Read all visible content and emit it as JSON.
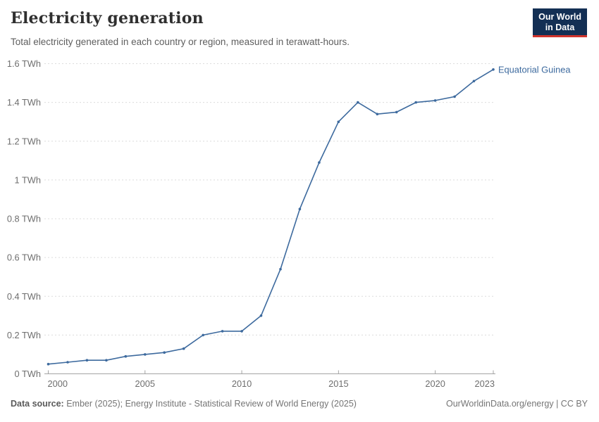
{
  "header": {
    "title": "Electricity generation",
    "subtitle": "Total electricity generated in each country or region, measured in terawatt-hours.",
    "logo": {
      "line1": "Our World",
      "line2": "in Data"
    }
  },
  "chart_data": {
    "type": "line",
    "title": "Electricity generation",
    "subtitle": "Total electricity generated in each country or region, measured in terawatt-hours.",
    "x": [
      2000,
      2001,
      2002,
      2003,
      2004,
      2005,
      2006,
      2007,
      2008,
      2009,
      2010,
      2011,
      2012,
      2013,
      2014,
      2015,
      2016,
      2017,
      2018,
      2019,
      2020,
      2021,
      2022,
      2023
    ],
    "series": [
      {
        "name": "Equatorial Guinea",
        "color": "#3d6a9e",
        "values": [
          0.05,
          0.06,
          0.07,
          0.07,
          0.09,
          0.1,
          0.11,
          0.13,
          0.2,
          0.22,
          0.22,
          0.3,
          0.54,
          0.85,
          1.09,
          1.3,
          1.4,
          1.34,
          1.35,
          1.4,
          1.41,
          1.43,
          1.51,
          1.57
        ]
      }
    ],
    "xlabel": "",
    "ylabel": "",
    "unit": "TWh",
    "xlim": [
      2000,
      2023
    ],
    "ylim": [
      0,
      1.6
    ],
    "x_ticks": [
      2000,
      2005,
      2010,
      2015,
      2020,
      2023
    ],
    "y_ticks": [
      {
        "v": 0,
        "label": "0 TWh"
      },
      {
        "v": 0.2,
        "label": "0.2 TWh"
      },
      {
        "v": 0.4,
        "label": "0.4 TWh"
      },
      {
        "v": 0.6,
        "label": "0.6 TWh"
      },
      {
        "v": 0.8,
        "label": "0.8 TWh"
      },
      {
        "v": 1,
        "label": "1 TWh"
      },
      {
        "v": 1.2,
        "label": "1.2 TWh"
      },
      {
        "v": 1.4,
        "label": "1.4 TWh"
      },
      {
        "v": 1.6,
        "label": "1.6 TWh"
      }
    ],
    "grid": "horizontal-dashed",
    "legend_position": "end-of-line-label"
  },
  "footer": {
    "datasource_label": "Data source:",
    "datasource_value": "Ember (2025); Energy Institute - Statistical Review of World Energy (2025)",
    "attribution": "OurWorldinData.org/energy | CC BY"
  },
  "colors": {
    "series": "#3d6a9e",
    "grid": "#dcdcdc",
    "axis": "#a3a3a3",
    "tick_text": "#6e6e6e",
    "logo_bg": "#132f54",
    "logo_red": "#d0342c"
  }
}
